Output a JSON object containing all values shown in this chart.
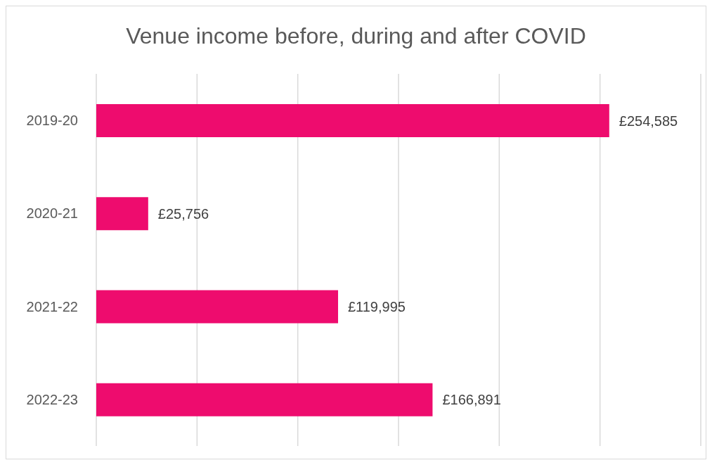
{
  "chart_data": {
    "type": "bar",
    "orientation": "horizontal",
    "title": "Venue income before, during and after COVID",
    "categories": [
      "2019-20",
      "2020-21",
      "2021-22",
      "2022-23"
    ],
    "values": [
      254585,
      25756,
      119995,
      166891
    ],
    "color": "#ee0c6e",
    "value_labels": [
      "£254,585",
      "£25,756",
      "£119,995",
      "£166,891"
    ],
    "xlim": [
      0,
      300000
    ],
    "xticks": [
      {
        "value": 0,
        "label": null
      },
      {
        "value": 50000,
        "label": null
      },
      {
        "value": 100000,
        "label": null
      },
      {
        "value": 150000,
        "label": null
      },
      {
        "value": 200000,
        "label": null
      },
      {
        "value": 250000,
        "label": null
      },
      {
        "value": 300000,
        "label": null
      }
    ],
    "grid": "x",
    "tick_labels": "y",
    "legend": false
  }
}
